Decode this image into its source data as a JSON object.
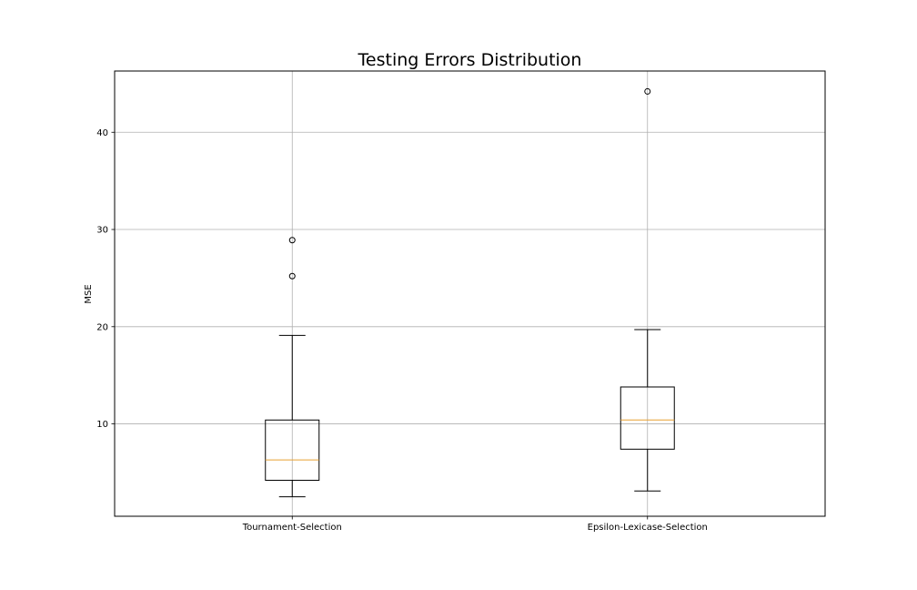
{
  "chart_data": {
    "type": "boxplot",
    "title": "Testing Errors Distribution",
    "xlabel": "",
    "ylabel": "MSE",
    "ylim": [
      0.5,
      46.3
    ],
    "yticks": [
      10,
      20,
      30,
      40
    ],
    "grid": true,
    "categories": [
      "Tournament-Selection",
      "Epsilon-Lexicase-Selection"
    ],
    "boxes": [
      {
        "category": "Tournament-Selection",
        "whisker_low": 2.5,
        "q1": 4.2,
        "median": 6.3,
        "q3": 10.4,
        "whisker_high": 19.1,
        "outliers": [
          25.2,
          28.9
        ]
      },
      {
        "category": "Epsilon-Lexicase-Selection",
        "whisker_low": 3.1,
        "q1": 7.4,
        "median": 10.4,
        "q3": 13.8,
        "whisker_high": 19.7,
        "outliers": [
          44.2
        ]
      }
    ],
    "colors": {
      "box": "#000000",
      "median": "#e8a030",
      "grid": "#b0b0b0"
    }
  }
}
